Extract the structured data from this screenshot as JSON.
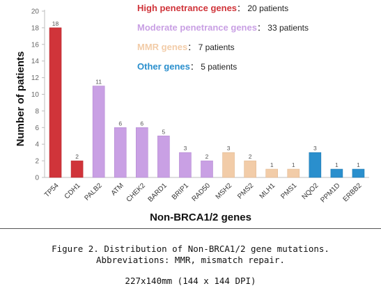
{
  "chart_data": {
    "type": "bar",
    "ylabel": "Number of patients",
    "xlabel": "Non-BRCA1/2 genes",
    "ylim": [
      0,
      20
    ],
    "yticks": [
      0,
      2,
      4,
      6,
      8,
      10,
      12,
      14,
      16,
      18,
      20
    ],
    "grid": false,
    "categories": [
      "TP54",
      "CDH1",
      "PALB2",
      "ATM",
      "CHEK2",
      "BARD1",
      "BRIP1",
      "RAD50",
      "MSH2",
      "PMS2",
      "MLH1",
      "PMS1",
      "NQO2",
      "PPM1D",
      "ERBB2"
    ],
    "values": [
      18,
      2,
      11,
      6,
      6,
      5,
      3,
      2,
      3,
      2,
      1,
      1,
      3,
      1,
      1
    ],
    "bar_groups": [
      "high",
      "high",
      "moderate",
      "moderate",
      "moderate",
      "moderate",
      "moderate",
      "moderate",
      "mmr",
      "mmr",
      "mmr",
      "mmr",
      "other",
      "other",
      "other"
    ],
    "groups": {
      "high": {
        "label": "High penetrance genes",
        "count_text": "20 patients",
        "color": "#d0343a",
        "bar_edge": "#b82a30"
      },
      "moderate": {
        "label": "Moderate penetrance genes",
        "count_text": "33 patients",
        "color": "#c9a0e4",
        "bar_edge": "#b58ad2"
      },
      "mmr": {
        "label": "MMR genes",
        "count_text": "7 patients",
        "color": "#f2cca8",
        "bar_edge": "#e2b890"
      },
      "other": {
        "label": "Other genes",
        "count_text": "5 patients",
        "color": "#2a8fcd",
        "bar_edge": "#1f7ab2"
      }
    },
    "legend_order": [
      "high",
      "moderate",
      "mmr",
      "other"
    ],
    "legend_separator": "："
  },
  "caption": {
    "line1": "Figure 2. Distribution of Non-BRCA1/2 gene mutations.",
    "line2": "Abbreviations: MMR, mismatch repair.",
    "line3": "227x140mm (144 x 144 DPI)"
  }
}
